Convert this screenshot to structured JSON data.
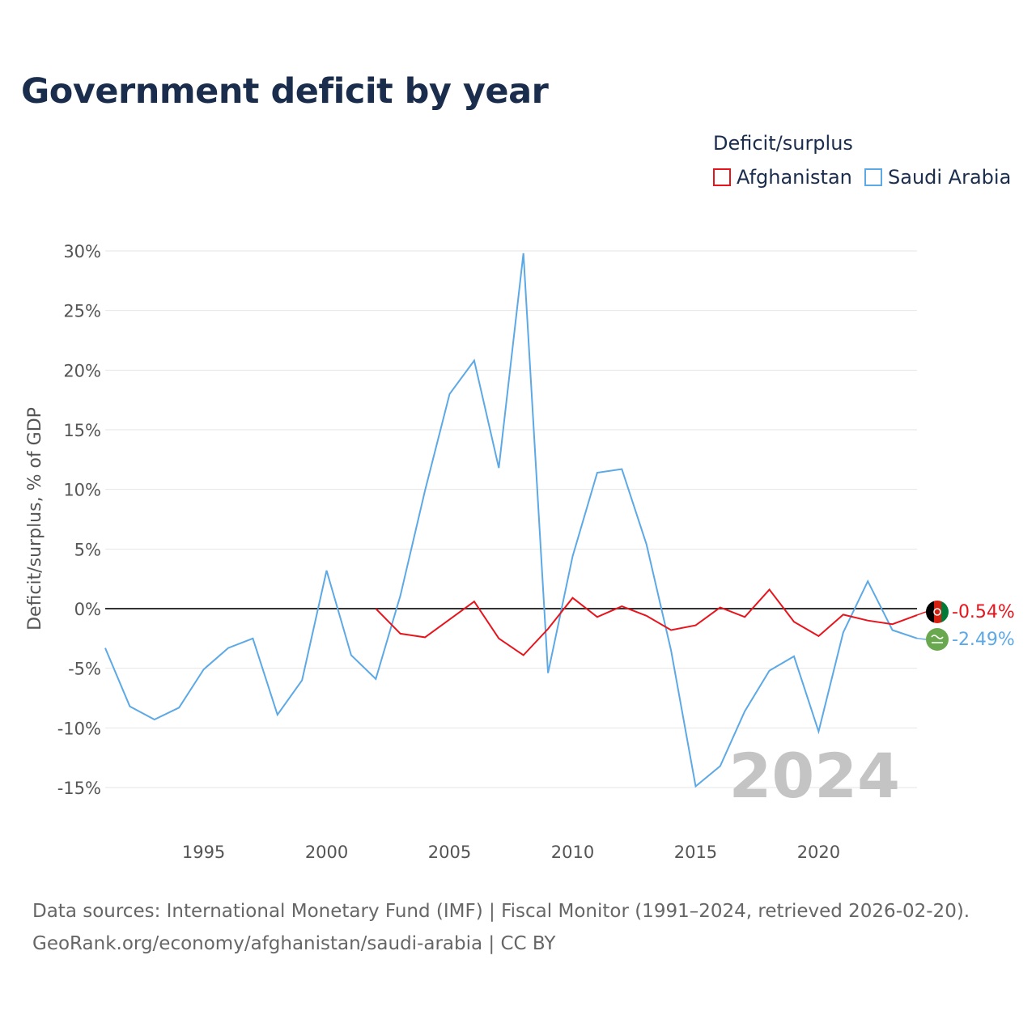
{
  "chart_data": {
    "type": "line",
    "title": "Government deficit by year",
    "legend_title": "Deficit/surplus",
    "legend_position": "top-right",
    "ylabel": "Deficit/surplus, % of GDP",
    "xlabel": "",
    "ylim": [
      -17,
      31
    ],
    "xlim": [
      1991,
      2024
    ],
    "yticks": [
      30,
      25,
      20,
      15,
      10,
      5,
      0,
      -5,
      -10,
      -15
    ],
    "ytick_labels": [
      "30%",
      "25%",
      "20%",
      "15%",
      "10%",
      "5%",
      "0%",
      "-5%",
      "-10%",
      "-15%"
    ],
    "xticks": [
      1995,
      2000,
      2005,
      2010,
      2015,
      2020
    ],
    "xtick_labels": [
      "1995",
      "2000",
      "2005",
      "2010",
      "2015",
      "2020"
    ],
    "watermark_year": "2024",
    "grid": true,
    "series": [
      {
        "name": "Afghanistan",
        "color": "#e8141c",
        "icon": "afghanistan-flag-icon",
        "end_label": "-0.54%",
        "points": [
          [
            2002,
            0.0
          ],
          [
            2003,
            -2.1
          ],
          [
            2004,
            -2.4
          ],
          [
            2005,
            -0.9
          ],
          [
            2006,
            0.6
          ],
          [
            2007,
            -2.5
          ],
          [
            2008,
            -3.9
          ],
          [
            2009,
            -1.7
          ],
          [
            2010,
            0.9
          ],
          [
            2011,
            -0.7
          ],
          [
            2012,
            0.2
          ],
          [
            2013,
            -0.6
          ],
          [
            2014,
            -1.8
          ],
          [
            2015,
            -1.4
          ],
          [
            2016,
            0.1
          ],
          [
            2017,
            -0.7
          ],
          [
            2018,
            1.6
          ],
          [
            2019,
            -1.1
          ],
          [
            2020,
            -2.3
          ],
          [
            2021,
            -0.5
          ],
          [
            2022,
            -1.0
          ],
          [
            2023,
            -1.3
          ],
          [
            2024,
            -0.54
          ]
        ]
      },
      {
        "name": "Saudi Arabia",
        "color": "#5ca9e6",
        "icon": "saudi-arabia-flag-icon",
        "end_label": "-2.49%",
        "points": [
          [
            1991,
            -3.3
          ],
          [
            1992,
            -8.2
          ],
          [
            1993,
            -9.3
          ],
          [
            1994,
            -8.3
          ],
          [
            1995,
            -5.1
          ],
          [
            1996,
            -3.3
          ],
          [
            1997,
            -2.5
          ],
          [
            1998,
            -8.9
          ],
          [
            1999,
            -6.0
          ],
          [
            2000,
            3.2
          ],
          [
            2001,
            -3.9
          ],
          [
            2002,
            -5.9
          ],
          [
            2003,
            1.1
          ],
          [
            2004,
            9.9
          ],
          [
            2005,
            18.0
          ],
          [
            2006,
            20.8
          ],
          [
            2007,
            11.8
          ],
          [
            2008,
            29.8
          ],
          [
            2009,
            -5.4
          ],
          [
            2010,
            4.4
          ],
          [
            2011,
            11.4
          ],
          [
            2012,
            11.7
          ],
          [
            2013,
            5.4
          ],
          [
            2014,
            -3.5
          ],
          [
            2015,
            -14.9
          ],
          [
            2016,
            -13.2
          ],
          [
            2017,
            -8.6
          ],
          [
            2018,
            -5.2
          ],
          [
            2019,
            -4.0
          ],
          [
            2020,
            -10.3
          ],
          [
            2021,
            -2.0
          ],
          [
            2022,
            2.3
          ],
          [
            2023,
            -1.8
          ],
          [
            2024,
            -2.49
          ]
        ]
      }
    ]
  },
  "source": {
    "line1": "Data sources: International Monetary Fund (IMF) | Fiscal Monitor (1991–2024, retrieved 2026-02-20).",
    "line2": "GeoRank.org/economy/afghanistan/saudi-arabia | CC BY"
  }
}
